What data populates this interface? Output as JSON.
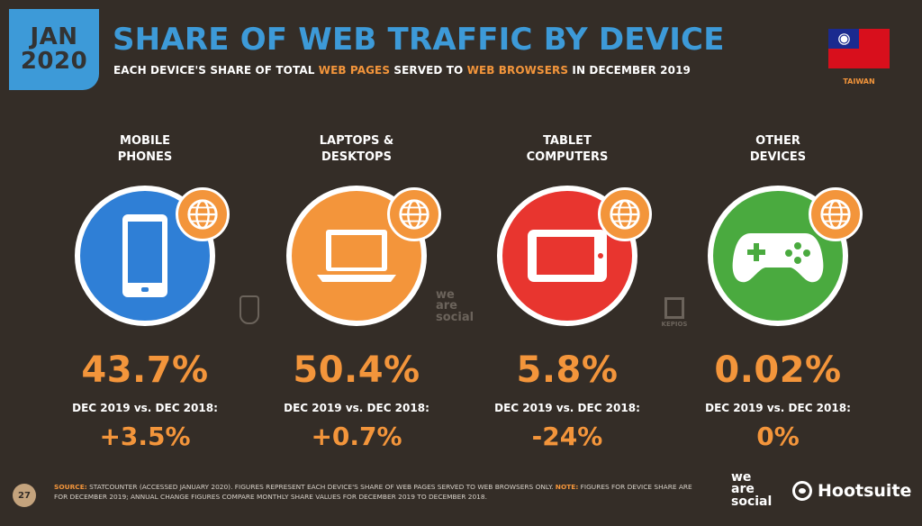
{
  "badge": {
    "month": "JAN",
    "year": "2020"
  },
  "title": "SHARE OF WEB TRAFFIC BY DEVICE",
  "subtitle": {
    "part1": "EACH DEVICE'S SHARE OF TOTAL ",
    "hl1": "WEB PAGES",
    "part2": " SERVED TO ",
    "hl2": "WEB BROWSERS",
    "part3": " IN DECEMBER 2019"
  },
  "country": "TAIWAN",
  "devices": [
    {
      "label_line1": "MOBILE",
      "label_line2": "PHONES",
      "value": "43.7%",
      "comparison_label": "DEC 2019 vs. DEC 2018:",
      "change": "+3.5%",
      "color": "#2f7fd6",
      "icon": "mobile-phone-icon"
    },
    {
      "label_line1": "LAPTOPS &",
      "label_line2": "DESKTOPS",
      "value": "50.4%",
      "comparison_label": "DEC 2019 vs. DEC 2018:",
      "change": "+0.7%",
      "color": "#f3953b",
      "icon": "laptop-icon"
    },
    {
      "label_line1": "TABLET",
      "label_line2": "COMPUTERS",
      "value": "5.8%",
      "comparison_label": "DEC 2019 vs. DEC 2018:",
      "change": "-24%",
      "color": "#e8352f",
      "icon": "tablet-icon"
    },
    {
      "label_line1": "OTHER",
      "label_line2": "DEVICES",
      "value": "0.02%",
      "comparison_label": "DEC 2019 vs. DEC 2018:",
      "change": "0%",
      "color": "#4aaa3f",
      "icon": "game-controller-icon"
    }
  ],
  "footer": {
    "page": "27",
    "source_label": "SOURCE:",
    "source_text": " STATCOUNTER (ACCESSED JANUARY 2020). FIGURES REPRESENT EACH DEVICE'S SHARE OF WEB PAGES SERVED TO WEB BROWSERS ONLY. ",
    "note_label": "NOTE:",
    "note_text": " FIGURES FOR DEVICE SHARE ARE FOR DECEMBER 2019; ANNUAL CHANGE FIGURES COMPARE MONTHLY SHARE VALUES FOR DECEMBER 2019 TO DECEMBER 2018.",
    "brand1_l1": "we",
    "brand1_l2": "are",
    "brand1_l3": "social",
    "brand2": "Hootsuite"
  },
  "watermarks": {
    "social_l1": "we",
    "social_l2": "are",
    "social_l3": "social",
    "kepios": "KEPIOS"
  }
}
